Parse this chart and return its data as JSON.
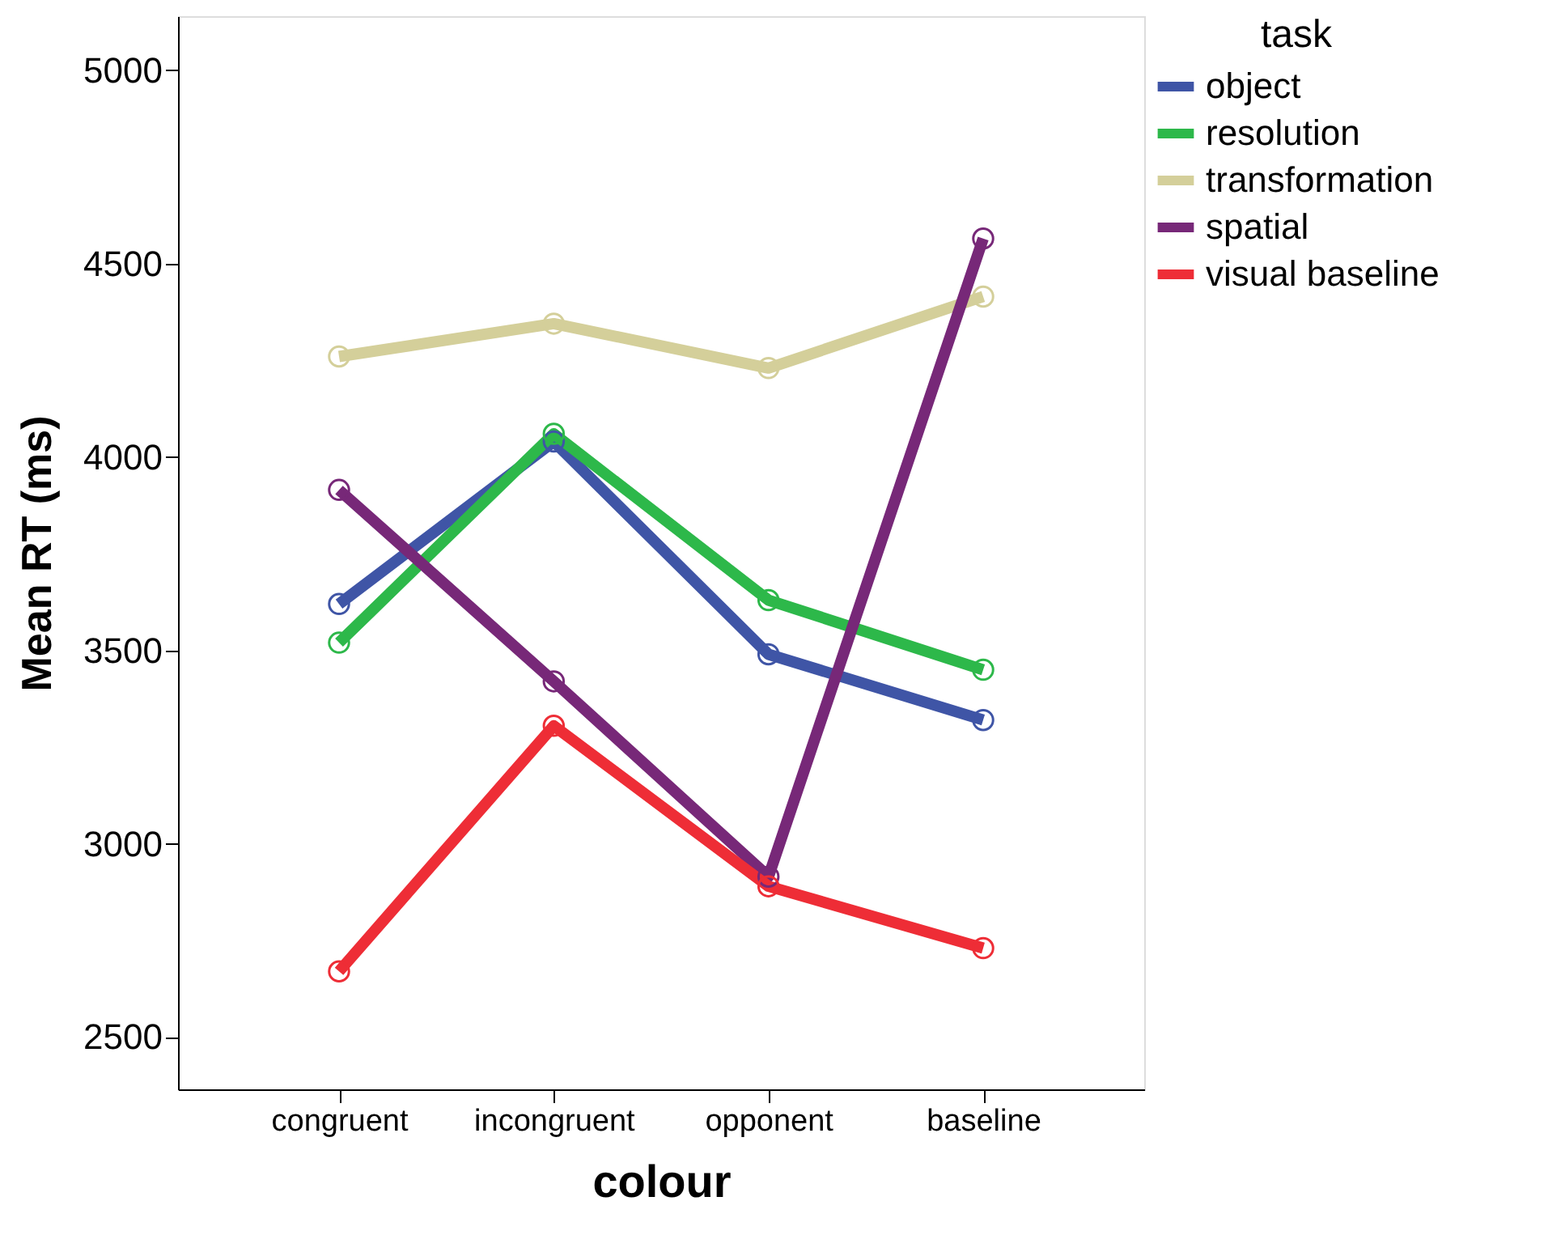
{
  "chart_data": {
    "type": "line",
    "xlabel": "colour",
    "ylabel": "Mean RT (ms)",
    "legend_title": "task",
    "categories": [
      "congruent",
      "incongruent",
      "opponent",
      "baseline"
    ],
    "series": [
      {
        "name": "object",
        "color": "#3f55a6",
        "values": [
          3620,
          4040,
          3490,
          3320
        ]
      },
      {
        "name": "resolution",
        "color": "#2db84a",
        "values": [
          3520,
          4060,
          3630,
          3450
        ]
      },
      {
        "name": "transformation",
        "color": "#d4cf9a",
        "values": [
          4260,
          4345,
          4230,
          4415
        ]
      },
      {
        "name": "spatial",
        "color": "#772878",
        "values": [
          3915,
          3420,
          2915,
          4565
        ]
      },
      {
        "name": "visual baseline",
        "color": "#ee2d36",
        "values": [
          2670,
          3305,
          2890,
          2730
        ]
      }
    ],
    "ylim": [
      2365,
      5140
    ],
    "yticks": [
      2500,
      3000,
      3500,
      4000,
      4500,
      5000
    ],
    "grid": false,
    "legend": "right",
    "marker": "circle",
    "line_style": "solid"
  }
}
